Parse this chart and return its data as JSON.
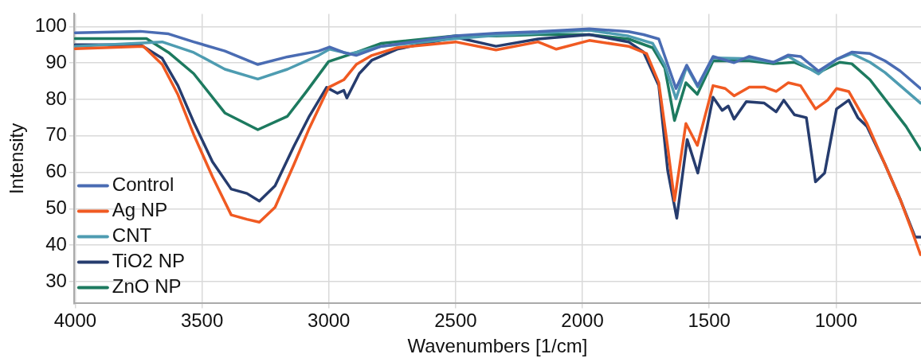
{
  "chart_data": {
    "type": "line",
    "xlabel": "Wavenumbers [1/cm]",
    "ylabel": "Intensity",
    "xlim": [
      4005,
      665
    ],
    "xticks": [
      4000,
      3500,
      3000,
      2500,
      2000,
      1500,
      1000
    ],
    "ylim": [
      24,
      103.5
    ],
    "yticks": [
      30,
      40,
      50,
      60,
      70,
      80,
      90,
      100
    ],
    "grid": true,
    "legend": "bottom left",
    "marker": "none",
    "line_style": "solid",
    "series": [
      {
        "name": "Control",
        "color": "#4a6cb3",
        "x": [
          4000,
          3743,
          3632,
          3533,
          3410,
          3280,
          3163,
          3040,
          2997,
          2941,
          2892,
          2793,
          2500,
          2341,
          2175,
          1973,
          1818,
          1759,
          1699,
          1631,
          1589,
          1545,
          1485,
          1402,
          1342,
          1247,
          1188,
          1140,
          1069,
          998,
          938,
          866,
          807,
          747,
          667
        ],
        "values": [
          98.3,
          98.7,
          98,
          95.8,
          93.3,
          89.6,
          91.7,
          93.3,
          94.4,
          92.9,
          92.1,
          94.6,
          97.5,
          98.2,
          98.6,
          99.4,
          98.6,
          97.8,
          96.6,
          83,
          89.4,
          83.8,
          91.8,
          90.1,
          91.8,
          90.2,
          92.2,
          91.8,
          87.8,
          91,
          93,
          92.6,
          90.6,
          87.8,
          83
        ]
      },
      {
        "name": "Ag NP",
        "color": "#f05a22",
        "x": [
          4000,
          3731,
          3657,
          3595,
          3533,
          3459,
          3385,
          3323,
          3274,
          3212,
          3138,
          3077,
          3001,
          2941,
          2892,
          2830,
          2731,
          2500,
          2341,
          2175,
          2103,
          1973,
          1818,
          1747,
          1699,
          1664,
          1637,
          1592,
          1547,
          1485,
          1437,
          1402,
          1342,
          1283,
          1236,
          1188,
          1140,
          1081,
          1033,
          998,
          950,
          878,
          807,
          747,
          700,
          667
        ],
        "values": [
          93.9,
          94.6,
          89.6,
          81.3,
          70.4,
          58.8,
          48.3,
          47.1,
          46.3,
          50.4,
          62.1,
          72.1,
          83.3,
          85.4,
          89.6,
          92.1,
          94.2,
          95.8,
          93.6,
          95.8,
          93.8,
          96.2,
          94.6,
          92.6,
          84.6,
          67,
          52.2,
          73.4,
          67.4,
          83.8,
          83,
          81,
          83.4,
          83.4,
          82.2,
          84.6,
          83.8,
          77.4,
          79.8,
          83,
          82.2,
          73.4,
          62.2,
          52.6,
          43.8,
          37.4
        ]
      },
      {
        "name": "CNT",
        "color": "#4e9cb1",
        "x": [
          4000,
          3657,
          3533,
          3410,
          3280,
          3163,
          3040,
          2997,
          2917,
          2793,
          2500,
          2341,
          2175,
          1973,
          1818,
          1723,
          1675,
          1631,
          1589,
          1545,
          1485,
          1342,
          1247,
          1188,
          1069,
          998,
          938,
          866,
          807,
          747,
          667
        ],
        "values": [
          94.6,
          95.8,
          92.9,
          88.3,
          85.6,
          88.3,
          92.1,
          93.8,
          92.5,
          94.6,
          96.7,
          97.6,
          98.2,
          99,
          97.4,
          95.4,
          89.4,
          80.2,
          89,
          83.4,
          91.4,
          91.2,
          90.2,
          91.8,
          87,
          91,
          92.6,
          90.2,
          87.4,
          83.8,
          79
        ]
      },
      {
        "name": "TiO2 NP",
        "color": "#263c6e",
        "x": [
          4000,
          3743,
          3657,
          3595,
          3533,
          3459,
          3385,
          3323,
          3274,
          3212,
          3138,
          3077,
          3009,
          2966,
          2941,
          2929,
          2880,
          2830,
          2731,
          2500,
          2341,
          2175,
          1973,
          1818,
          1759,
          1699,
          1664,
          1628,
          1587,
          1545,
          1485,
          1449,
          1425,
          1402,
          1354,
          1283,
          1236,
          1206,
          1164,
          1117,
          1081,
          1045,
          998,
          950,
          914,
          878,
          807,
          747,
          688,
          667
        ],
        "values": [
          95,
          95,
          91.3,
          83.8,
          73.8,
          62.9,
          55.4,
          54.2,
          52.1,
          56.3,
          67.1,
          75.4,
          83.3,
          81.7,
          82.5,
          80.4,
          87.1,
          90.8,
          93.8,
          97.1,
          94.6,
          96.6,
          97.8,
          95.8,
          93,
          83.8,
          60.6,
          47.4,
          69,
          59.8,
          80.6,
          77,
          78.2,
          74.6,
          79.4,
          79,
          76.6,
          79.8,
          75.8,
          75,
          57.4,
          59.8,
          77.4,
          79.8,
          75,
          72.6,
          62.2,
          52.6,
          42.2,
          42.2
        ]
      },
      {
        "name": "ZnO NP",
        "color": "#1d7a5f",
        "x": [
          4000,
          3719,
          3632,
          3533,
          3410,
          3280,
          3163,
          3089,
          3001,
          2892,
          2793,
          2500,
          2341,
          2175,
          1973,
          1818,
          1723,
          1675,
          1637,
          1592,
          1547,
          1485,
          1342,
          1247,
          1164,
          1069,
          986,
          938,
          866,
          795,
          724,
          667
        ],
        "values": [
          96.7,
          96.7,
          92.9,
          87.1,
          76.3,
          71.7,
          75.4,
          82.1,
          90.4,
          92.9,
          95.4,
          97.5,
          97.4,
          97.8,
          97.8,
          96.6,
          94.2,
          88.6,
          74.2,
          84.6,
          81.4,
          90.6,
          90.6,
          89.8,
          90.2,
          87.4,
          90.2,
          89.8,
          85.4,
          79,
          72.6,
          66.2
        ]
      }
    ]
  }
}
